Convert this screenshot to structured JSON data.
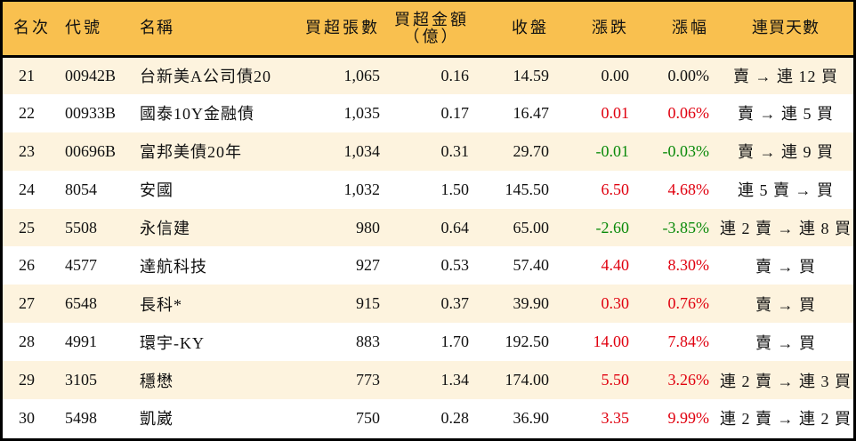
{
  "colors": {
    "header_bg": "#F9C04F",
    "row_odd_bg": "#FDF3DE",
    "row_even_bg": "#FFFFFF",
    "up": "#E0000F",
    "down": "#0A8A0A",
    "border": "#000000"
  },
  "table": {
    "headers": {
      "rank": "名次",
      "code": "代號",
      "name": "名稱",
      "net_buy_lots": "買超張數",
      "net_buy_amount_line1": "買超金額",
      "net_buy_amount_line2": "（億）",
      "close": "收盤",
      "change": "漲跌",
      "change_pct": "漲幅",
      "consecutive_days": "連買天數"
    },
    "rows": [
      {
        "rank": "21",
        "code": "00942B",
        "name": "台新美A公司債20",
        "net_buy_lots": "1,065",
        "net_buy_amount": "0.16",
        "close": "14.59",
        "change": "0.00",
        "change_pct": "0.00%",
        "direction": "flat",
        "consecutive_days": "賣 → 連 12 買"
      },
      {
        "rank": "22",
        "code": "00933B",
        "name": "國泰10Y金融債",
        "net_buy_lots": "1,035",
        "net_buy_amount": "0.17",
        "close": "16.47",
        "change": "0.01",
        "change_pct": "0.06%",
        "direction": "up",
        "consecutive_days": "賣 → 連 5 買"
      },
      {
        "rank": "23",
        "code": "00696B",
        "name": "富邦美債20年",
        "net_buy_lots": "1,034",
        "net_buy_amount": "0.31",
        "close": "29.70",
        "change": "-0.01",
        "change_pct": "-0.03%",
        "direction": "down",
        "consecutive_days": "賣 → 連 9 買"
      },
      {
        "rank": "24",
        "code": "8054",
        "name": "安國",
        "net_buy_lots": "1,032",
        "net_buy_amount": "1.50",
        "close": "145.50",
        "change": "6.50",
        "change_pct": "4.68%",
        "direction": "up",
        "consecutive_days": "連 5 賣 → 買"
      },
      {
        "rank": "25",
        "code": "5508",
        "name": "永信建",
        "net_buy_lots": "980",
        "net_buy_amount": "0.64",
        "close": "65.00",
        "change": "-2.60",
        "change_pct": "-3.85%",
        "direction": "down",
        "consecutive_days": "連 2 賣 → 連 8 買"
      },
      {
        "rank": "26",
        "code": "4577",
        "name": "達航科技",
        "net_buy_lots": "927",
        "net_buy_amount": "0.53",
        "close": "57.40",
        "change": "4.40",
        "change_pct": "8.30%",
        "direction": "up",
        "consecutive_days": "賣 → 買"
      },
      {
        "rank": "27",
        "code": "6548",
        "name": "長科*",
        "net_buy_lots": "915",
        "net_buy_amount": "0.37",
        "close": "39.90",
        "change": "0.30",
        "change_pct": "0.76%",
        "direction": "up",
        "consecutive_days": "賣 → 買"
      },
      {
        "rank": "28",
        "code": "4991",
        "name": "環宇-KY",
        "net_buy_lots": "883",
        "net_buy_amount": "1.70",
        "close": "192.50",
        "change": "14.00",
        "change_pct": "7.84%",
        "direction": "up",
        "consecutive_days": "賣 → 買"
      },
      {
        "rank": "29",
        "code": "3105",
        "name": "穩懋",
        "net_buy_lots": "773",
        "net_buy_amount": "1.34",
        "close": "174.00",
        "change": "5.50",
        "change_pct": "3.26%",
        "direction": "up",
        "consecutive_days": "連 2 賣 → 連 3 買"
      },
      {
        "rank": "30",
        "code": "5498",
        "name": "凱崴",
        "net_buy_lots": "750",
        "net_buy_amount": "0.28",
        "close": "36.90",
        "change": "3.35",
        "change_pct": "9.99%",
        "direction": "up",
        "consecutive_days": "連 2 賣 → 連 2 買"
      }
    ]
  }
}
